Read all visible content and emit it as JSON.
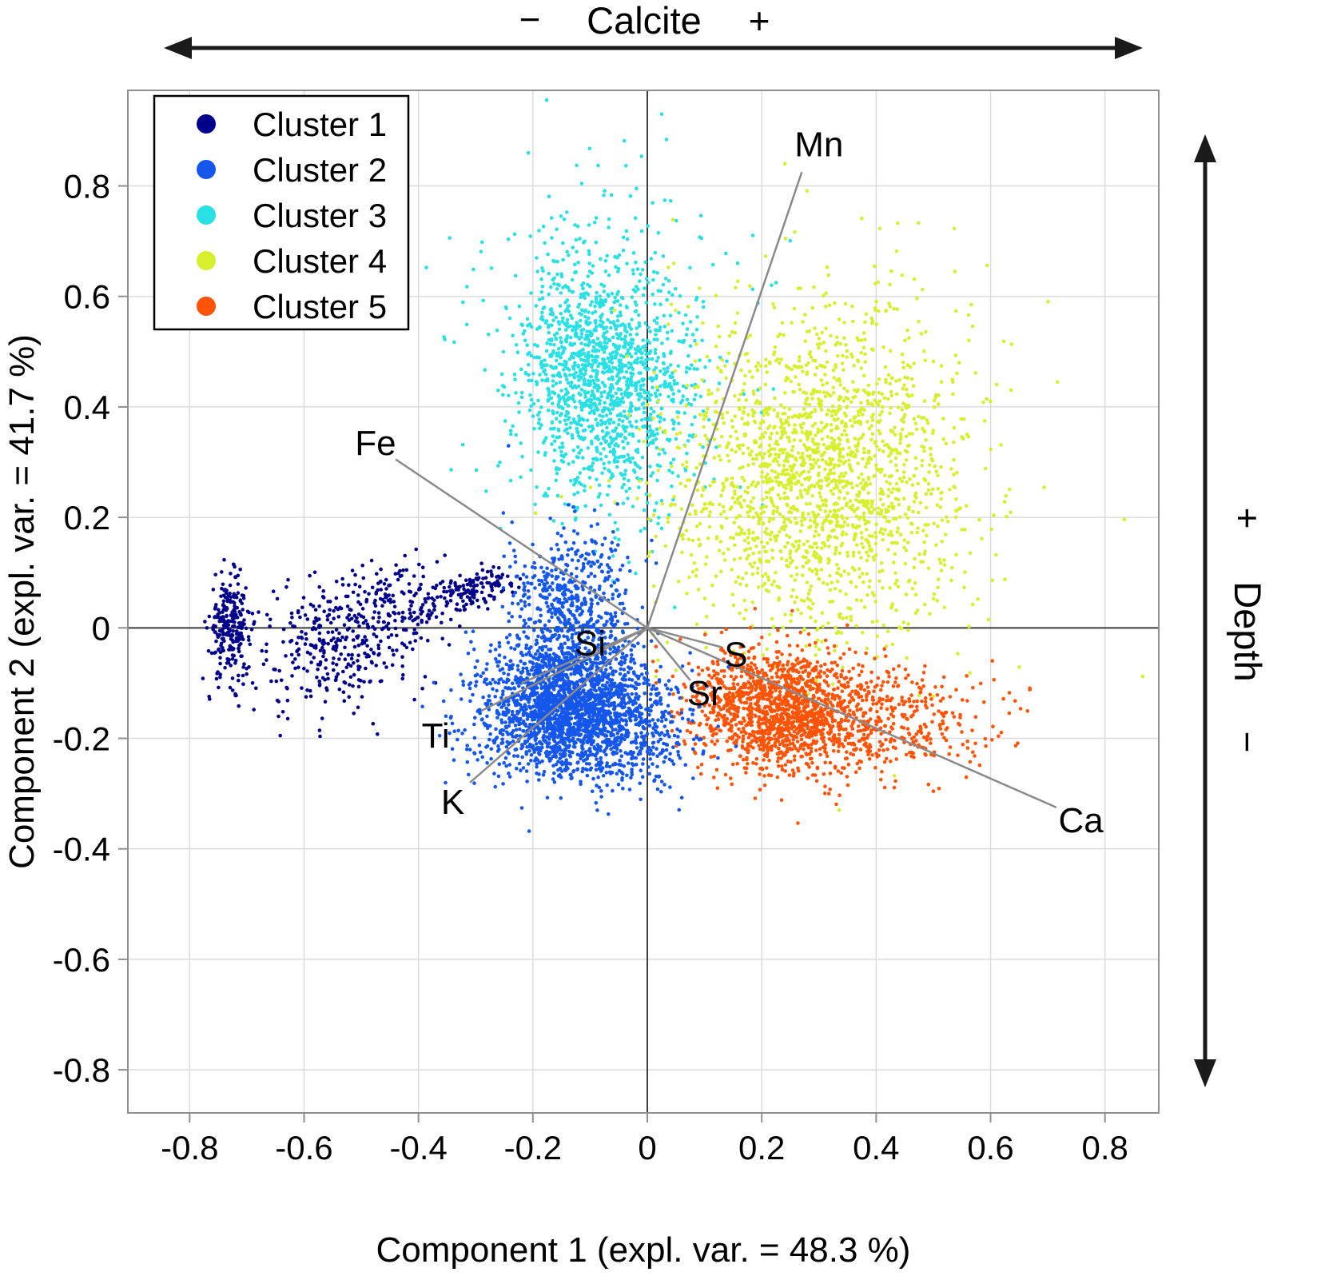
{
  "chart_data": {
    "type": "scatter",
    "title": "",
    "xlabel": "Component 1 (expl. var. = 48.3 %)",
    "ylabel": "Component 2 (expl. var. = 41.7 %)",
    "xlim": [
      -0.908,
      0.894
    ],
    "ylim": [
      -0.878,
      0.973
    ],
    "grid": true,
    "xticks": [
      {
        "v": -0.8,
        "label": "-0.8"
      },
      {
        "v": -0.6,
        "label": "-0.6"
      },
      {
        "v": -0.4,
        "label": "-0.4"
      },
      {
        "v": -0.2,
        "label": "-0.2"
      },
      {
        "v": 0,
        "label": "0"
      },
      {
        "v": 0.2,
        "label": "0.2"
      },
      {
        "v": 0.4,
        "label": "0.4"
      },
      {
        "v": 0.6,
        "label": "0.6"
      },
      {
        "v": 0.8,
        "label": "0.8"
      }
    ],
    "yticks": [
      {
        "v": -0.8,
        "label": "-0.8"
      },
      {
        "v": -0.6,
        "label": "-0.6"
      },
      {
        "v": -0.4,
        "label": "-0.4"
      },
      {
        "v": -0.2,
        "label": "-0.2"
      },
      {
        "v": 0,
        "label": "0"
      },
      {
        "v": 0.2,
        "label": "0.2"
      },
      {
        "v": 0.4,
        "label": "0.4"
      },
      {
        "v": 0.6,
        "label": "0.6"
      },
      {
        "v": 0.8,
        "label": "0.8"
      }
    ],
    "legend": {
      "position": "top-left",
      "items": [
        {
          "label": "Cluster 1",
          "color": "#00008b"
        },
        {
          "label": "Cluster 2",
          "color": "#1557eb"
        },
        {
          "label": "Cluster 3",
          "color": "#29e0e5"
        },
        {
          "label": "Cluster 4",
          "color": "#d8ef30"
        },
        {
          "label": "Cluster 5",
          "color": "#ff5408"
        }
      ]
    },
    "clusters": [
      {
        "name": "Cluster 1",
        "color": "#00008b",
        "blobs": [
          {
            "cx": -0.73,
            "cy": 0.0,
            "sx": 0.018,
            "sy": 0.045,
            "n": 260,
            "tilt": 0
          },
          {
            "cx": -0.55,
            "cy": -0.03,
            "sx": 0.07,
            "sy": 0.06,
            "n": 300,
            "tilt": 0.25
          },
          {
            "cx": -0.43,
            "cy": 0.04,
            "sx": 0.06,
            "sy": 0.045,
            "n": 170,
            "tilt": 0.3
          },
          {
            "cx": -0.3,
            "cy": 0.07,
            "sx": 0.038,
            "sy": 0.016,
            "n": 140,
            "tilt": 0.25
          }
        ]
      },
      {
        "name": "Cluster 3",
        "color": "#29e0e5",
        "blobs": [
          {
            "cx": -0.08,
            "cy": 0.45,
            "sx": 0.07,
            "sy": 0.11,
            "n": 1350,
            "tilt": 0.08
          },
          {
            "cx": -0.07,
            "cy": 0.55,
            "sx": 0.13,
            "sy": 0.17,
            "n": 230,
            "tilt": 0
          }
        ]
      },
      {
        "name": "Cluster 4",
        "color": "#d8ef30",
        "blobs": [
          {
            "cx": 0.3,
            "cy": 0.27,
            "sx": 0.12,
            "sy": 0.14,
            "n": 1750,
            "tilt": 0
          },
          {
            "cx": 0.33,
            "cy": 0.33,
            "sx": 0.17,
            "sy": 0.18,
            "n": 260,
            "tilt": 0
          }
        ]
      },
      {
        "name": "Cluster 5",
        "color": "#ff5408",
        "blobs": [
          {
            "cx": 0.235,
            "cy": -0.15,
            "sx": 0.085,
            "sy": 0.055,
            "n": 1550,
            "tilt": -0.12
          },
          {
            "cx": 0.45,
            "cy": -0.16,
            "sx": 0.085,
            "sy": 0.05,
            "n": 280,
            "tilt": -0.1
          }
        ]
      },
      {
        "name": "Cluster 2",
        "color": "#1557eb",
        "blobs": [
          {
            "cx": -0.145,
            "cy": -0.15,
            "sx": 0.075,
            "sy": 0.062,
            "n": 2000,
            "tilt": 0
          },
          {
            "cx": -0.13,
            "cy": 0.02,
            "sx": 0.055,
            "sy": 0.08,
            "n": 650,
            "tilt": 0
          },
          {
            "cx": -0.01,
            "cy": -0.19,
            "sx": 0.05,
            "sy": 0.05,
            "n": 260,
            "tilt": 0
          }
        ]
      }
    ],
    "vectors": [
      {
        "label": "Mn",
        "x": 0.27,
        "y": 0.825,
        "lx": 0.3,
        "ly": 0.875
      },
      {
        "label": "Fe",
        "x": -0.44,
        "y": 0.305,
        "lx": -0.475,
        "ly": 0.335
      },
      {
        "label": "Si",
        "x": -0.22,
        "y": -0.1,
        "lx": -0.1,
        "ly": -0.028
      },
      {
        "label": "Ti",
        "x": -0.29,
        "y": -0.15,
        "lx": -0.37,
        "ly": -0.195
      },
      {
        "label": "K",
        "x": -0.31,
        "y": -0.28,
        "lx": -0.34,
        "ly": -0.315
      },
      {
        "label": "S",
        "x": 0.13,
        "y": -0.035,
        "lx": 0.155,
        "ly": -0.048
      },
      {
        "label": "Sr",
        "x": 0.075,
        "y": -0.095,
        "lx": 0.1,
        "ly": -0.118
      },
      {
        "label": "Ca",
        "x": 0.715,
        "y": -0.325,
        "lx": 0.758,
        "ly": -0.348
      }
    ],
    "annotations": {
      "top": {
        "minus": "−",
        "label": "Calcite",
        "plus": "+"
      },
      "right": {
        "plus": "+",
        "label": "Depth",
        "minus": "−"
      }
    },
    "colors": {
      "grid": "#dcdcdc",
      "zero_line": "#3c3c3c",
      "box": "#8f8f8f",
      "vector": "#8a8a8a",
      "annotation": "#1a1a1a"
    }
  }
}
